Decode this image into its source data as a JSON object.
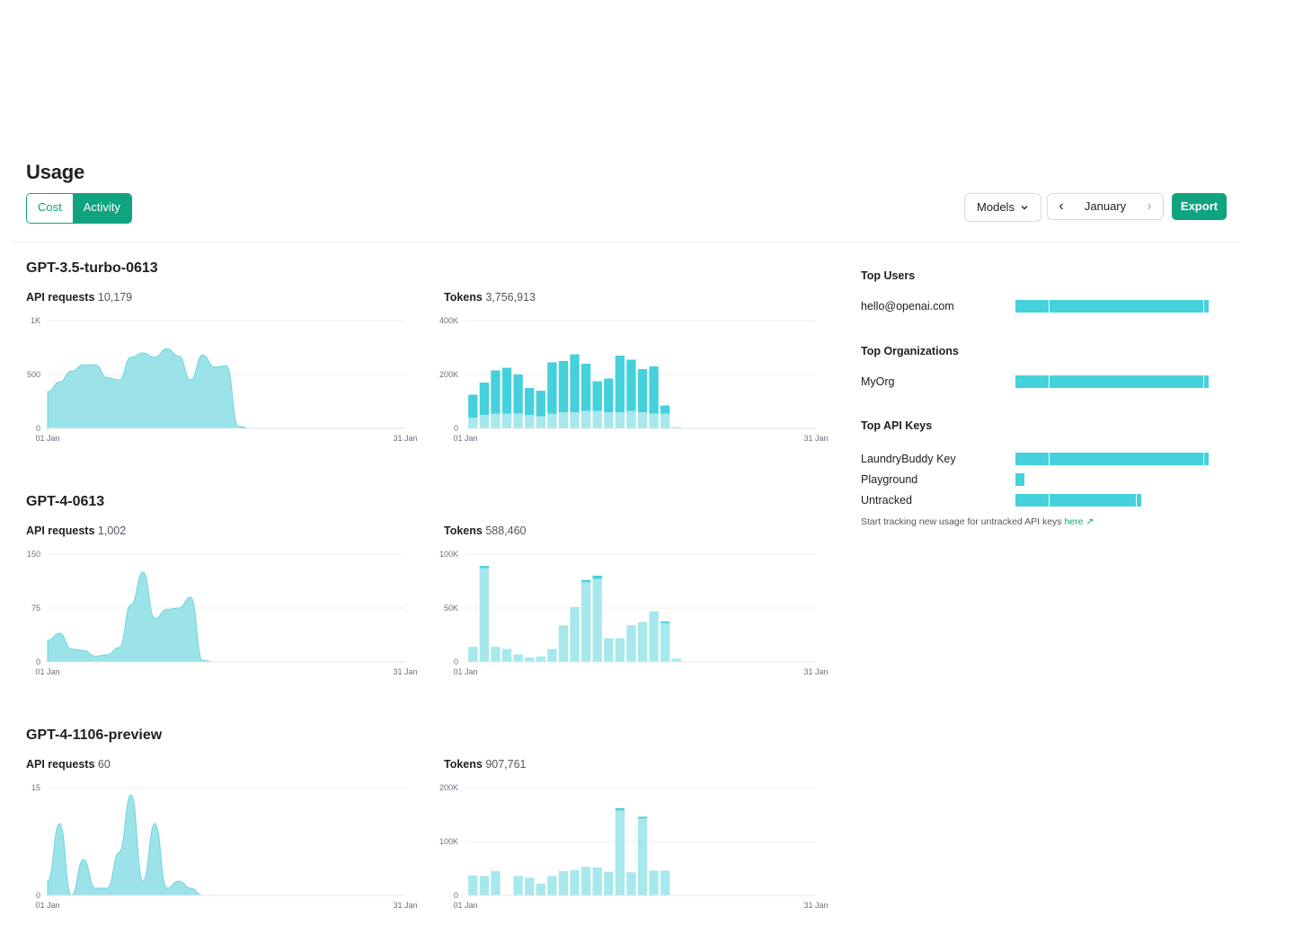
{
  "page": {
    "title": "Usage"
  },
  "tabs": [
    {
      "label": "Cost",
      "active": false
    },
    {
      "label": "Activity",
      "active": true
    }
  ],
  "controls": {
    "models_label": "Models",
    "month_label": "January",
    "export_label": "Export"
  },
  "colors": {
    "accent": "#10a37f",
    "area": "#9be3e8",
    "bar_dark": "#44d1db",
    "bar_light": "#a6e8ec"
  },
  "models": [
    {
      "name": "GPT-3.5-turbo-0613",
      "requests": {
        "label": "API requests",
        "total": "10,179"
      },
      "tokens": {
        "label": "Tokens",
        "total": "3,756,913"
      }
    },
    {
      "name": "GPT-4-0613",
      "requests": {
        "label": "API requests",
        "total": "1,002"
      },
      "tokens": {
        "label": "Tokens",
        "total": "588,460"
      }
    },
    {
      "name": "GPT-4-1106-preview",
      "requests": {
        "label": "API requests",
        "total": "60"
      },
      "tokens": {
        "label": "Tokens",
        "total": "907,761"
      }
    }
  ],
  "chart_data": [
    {
      "type": "area",
      "model": "GPT-3.5-turbo-0613",
      "x_start": "01 Jan",
      "x_end": "31 Jan",
      "y_ticks": [
        "0",
        "500",
        "1K"
      ],
      "ylim": [
        0,
        1000
      ],
      "values": [
        340,
        430,
        530,
        590,
        590,
        470,
        450,
        660,
        700,
        660,
        740,
        670,
        450,
        680,
        570,
        580,
        20,
        0,
        0,
        0,
        0,
        0,
        0,
        0,
        0,
        0,
        0,
        0,
        0,
        0,
        0
      ]
    },
    {
      "type": "bar",
      "model": "GPT-3.5-turbo-0613",
      "x_start": "01 Jan",
      "x_end": "31 Jan",
      "y_ticks": [
        "0",
        "200K",
        "400K"
      ],
      "ylim": [
        0,
        400000
      ],
      "series": [
        {
          "name": "",
          "values": [
            40000,
            50000,
            55000,
            55000,
            55000,
            50000,
            45000,
            55000,
            60000,
            60000,
            65000,
            65000,
            60000,
            60000,
            65000,
            60000,
            55000,
            55000,
            5000,
            0,
            0,
            0,
            0,
            0,
            0,
            0,
            0,
            0,
            0,
            0,
            0
          ]
        },
        {
          "name": "",
          "values": [
            85000,
            120000,
            160000,
            170000,
            145000,
            100000,
            95000,
            190000,
            190000,
            215000,
            175000,
            110000,
            125000,
            210000,
            190000,
            160000,
            175000,
            30000,
            0,
            0,
            0,
            0,
            0,
            0,
            0,
            0,
            0,
            0,
            0,
            0,
            0
          ]
        }
      ]
    },
    {
      "type": "area",
      "model": "GPT-4-0613",
      "x_start": "01 Jan",
      "x_end": "31 Jan",
      "y_ticks": [
        "0",
        "75",
        "150"
      ],
      "ylim": [
        0,
        150
      ],
      "values": [
        30,
        40,
        18,
        16,
        8,
        10,
        20,
        80,
        125,
        60,
        73,
        75,
        90,
        2,
        0,
        0,
        0,
        0,
        0,
        0,
        0,
        0,
        0,
        0,
        0,
        0,
        0,
        0,
        0,
        0,
        0
      ]
    },
    {
      "type": "bar",
      "model": "GPT-4-0613",
      "x_start": "01 Jan",
      "x_end": "31 Jan",
      "y_ticks": [
        "0",
        "50K",
        "100K"
      ],
      "ylim": [
        0,
        100000
      ],
      "series": [
        {
          "name": "",
          "values": [
            14000,
            87000,
            14000,
            12000,
            7000,
            4000,
            5000,
            12000,
            34000,
            51000,
            74000,
            77000,
            22000,
            22000,
            34000,
            37000,
            47000,
            36000,
            3000,
            0,
            0,
            0,
            0,
            0,
            0,
            0,
            0,
            0,
            0,
            0,
            0
          ]
        },
        {
          "name": "",
          "values": [
            0,
            2000,
            0,
            0,
            0,
            0,
            0,
            0,
            0,
            0,
            2000,
            3000,
            0,
            0,
            0,
            0,
            0,
            1500,
            0,
            0,
            0,
            0,
            0,
            0,
            0,
            0,
            0,
            0,
            0,
            0,
            0
          ]
        }
      ]
    },
    {
      "type": "area",
      "model": "GPT-4-1106-preview",
      "x_start": "01 Jan",
      "x_end": "31 Jan",
      "y_ticks": [
        "0",
        "15"
      ],
      "ylim": [
        0,
        15
      ],
      "values": [
        2,
        10,
        0,
        5,
        1,
        1,
        6,
        14,
        2,
        10,
        1,
        2,
        1,
        0,
        0,
        0,
        0,
        0,
        0,
        0,
        0,
        0,
        0,
        0,
        0,
        0,
        0,
        0,
        0,
        0,
        0
      ]
    },
    {
      "type": "bar",
      "model": "GPT-4-1106-preview",
      "x_start": "01 Jan",
      "x_end": "31 Jan",
      "y_ticks": [
        "0",
        "100K",
        "200K"
      ],
      "ylim": [
        0,
        200000
      ],
      "series": [
        {
          "name": "",
          "values": [
            37000,
            36000,
            45000,
            0,
            36000,
            33000,
            22000,
            36000,
            45000,
            47000,
            53000,
            52000,
            44000,
            158000,
            43000,
            143000,
            46000,
            46000,
            0,
            0,
            0,
            0,
            0,
            0,
            0,
            0,
            0,
            0,
            0,
            0,
            0
          ]
        },
        {
          "name": "",
          "values": [
            0,
            0,
            0,
            0,
            0,
            0,
            0,
            0,
            0,
            0,
            0,
            0,
            0,
            4000,
            0,
            3000,
            0,
            0,
            0,
            0,
            0,
            0,
            0,
            0,
            0,
            0,
            0,
            0,
            0,
            0,
            0
          ]
        }
      ]
    }
  ],
  "sidebar": {
    "top_users": {
      "heading": "Top Users",
      "items": [
        {
          "label": "hello@openai.com",
          "value": 1.0
        }
      ]
    },
    "top_orgs": {
      "heading": "Top Organizations",
      "items": [
        {
          "label": "MyOrg",
          "value": 1.0
        }
      ]
    },
    "top_keys": {
      "heading": "Top API Keys",
      "items": [
        {
          "label": "LaundryBuddy Key",
          "value": 1.0
        },
        {
          "label": "Playground",
          "value": 0.045
        },
        {
          "label": "Untracked",
          "value": 0.65
        }
      ]
    },
    "note": "Start tracking new usage for untracked API keys",
    "note_link": "here",
    "note_link_icon": "arrow-up-right-icon"
  }
}
